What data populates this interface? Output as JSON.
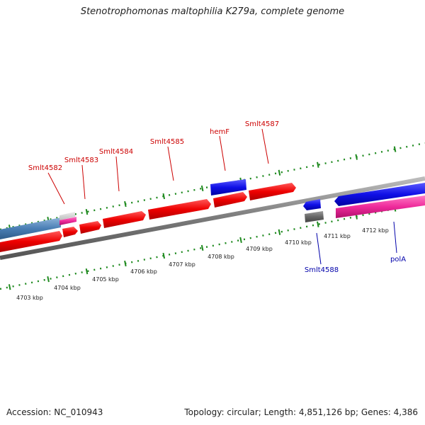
{
  "title": "Stenotrophomonas maltophilia K279a, complete genome",
  "footer": {
    "accession": "Accession: NC_010943",
    "summary": "Topology: circular; Length: 4,851,126 bp; Genes: 4,386"
  },
  "ruler": {
    "ticks": [
      {
        "label": "4703 kbp"
      },
      {
        "label": "4704 kbp"
      },
      {
        "label": "4705 kbp"
      },
      {
        "label": "4706 kbp"
      },
      {
        "label": "4707 kbp"
      },
      {
        "label": "4708 kbp"
      },
      {
        "label": "4709 kbp"
      },
      {
        "label": "4710 kbp"
      },
      {
        "label": "4711 kbp"
      },
      {
        "label": "4712 kbp"
      }
    ]
  },
  "labels": {
    "top": [
      {
        "text": "Smlt4582"
      },
      {
        "text": "Smlt4583"
      },
      {
        "text": "Smlt4584"
      },
      {
        "text": "Smlt4585"
      },
      {
        "text": "hemF"
      },
      {
        "text": "Smlt4587"
      }
    ],
    "bottom": [
      {
        "text": "Smlt4588"
      },
      {
        "text": "polA"
      }
    ]
  },
  "colors": {
    "red_gene": "#f01010",
    "blue_gene": "#1010e0",
    "steel_blue": "#4a7fb5",
    "pink": "#ee2a9a",
    "gray_gene": "#666666",
    "backbone": "#888888",
    "tick": "#1f8a1f",
    "label_red": "#cc0000",
    "label_blue": "#0000aa"
  }
}
